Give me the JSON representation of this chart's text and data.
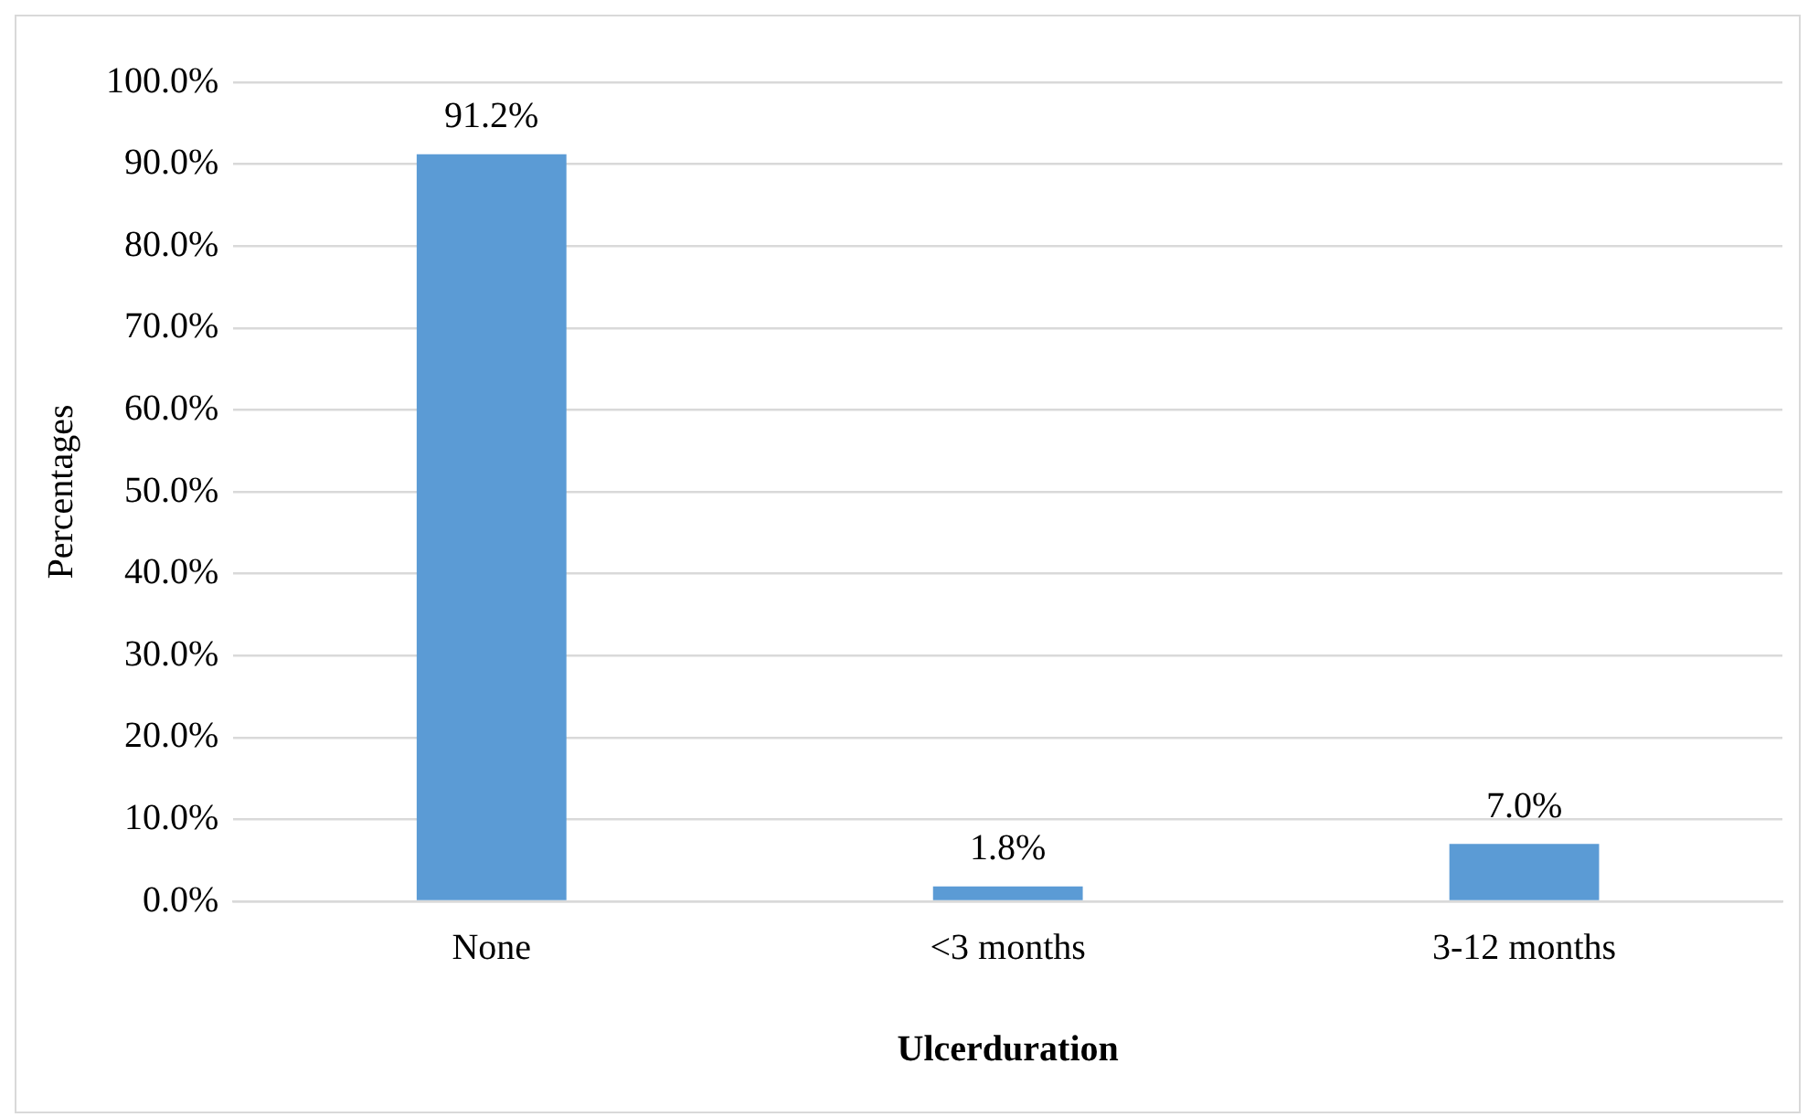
{
  "chart_data": {
    "type": "bar",
    "xlabel": "Ulcerduration",
    "ylabel": "Percentages",
    "categories": [
      "None",
      "<3 months",
      "3-12 months"
    ],
    "values": [
      91.2,
      1.8,
      7.0
    ],
    "color": "#5b9bd5",
    "value_labels": [
      "91.2%",
      "1.8%",
      "7.0%"
    ],
    "ylim": [
      0,
      100
    ],
    "yticks": [
      {
        "value": 0,
        "label": "0.0%"
      },
      {
        "value": 10,
        "label": "10.0%"
      },
      {
        "value": 20,
        "label": "20.0%"
      },
      {
        "value": 30,
        "label": "30.0%"
      },
      {
        "value": 40,
        "label": "40.0%"
      },
      {
        "value": 50,
        "label": "50.0%"
      },
      {
        "value": 60,
        "label": "60.0%"
      },
      {
        "value": 70,
        "label": "70.0%"
      },
      {
        "value": 80,
        "label": "80.0%"
      },
      {
        "value": 90,
        "label": "90.0%"
      },
      {
        "value": 100,
        "label": "100.0%"
      }
    ],
    "grid": "y",
    "legend": false
  }
}
